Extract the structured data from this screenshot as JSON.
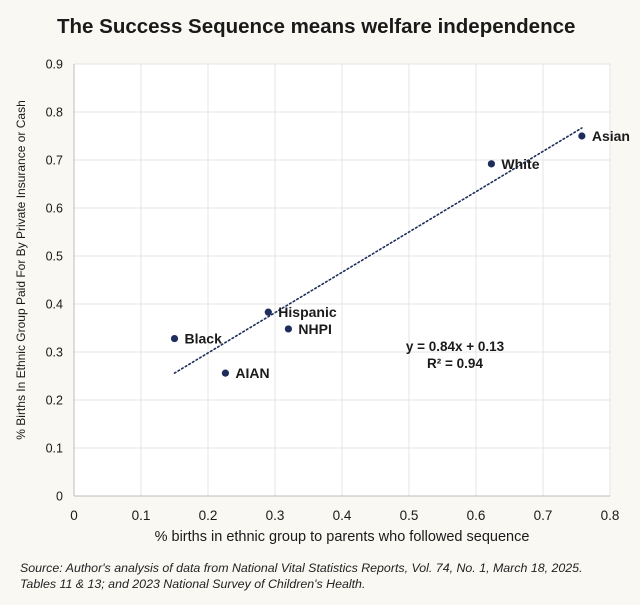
{
  "page": {
    "title": "The Success Sequence means welfare independence",
    "source_line1": "Source: Author's analysis of data from National Vital Statistics Reports, Vol. 74, No. 1, March 18, 2025.",
    "source_line2": "Tables 11 & 13; and 2023 National Survey of Children's Health."
  },
  "chart_data": {
    "type": "scatter",
    "title": "The Success Sequence means welfare independence",
    "xlabel": "% births in ethnic group to parents who followed sequence",
    "ylabel": "% Births In Ethnic Group Paid For By Private Insurance or Cash",
    "xlim": [
      0,
      0.8
    ],
    "ylim": [
      0,
      0.9
    ],
    "xticks": [
      0,
      0.1,
      0.2,
      0.3,
      0.4,
      0.5,
      0.6,
      0.7,
      0.8
    ],
    "yticks": [
      0,
      0.1,
      0.2,
      0.3,
      0.4,
      0.5,
      0.6,
      0.7,
      0.8,
      0.9
    ],
    "xtick_labels": [
      "0",
      "0.1",
      "0.2",
      "0.3",
      "0.4",
      "0.5",
      "0.6",
      "0.7",
      "0.8"
    ],
    "ytick_labels": [
      "0",
      "0.1",
      "0.2",
      "0.3",
      "0.4",
      "0.5",
      "0.6",
      "0.7",
      "0.8",
      "0.9"
    ],
    "grid": true,
    "point_color": "#1f2d5c",
    "points": [
      {
        "label": "Asian",
        "x": 0.758,
        "y": 0.75
      },
      {
        "label": "White",
        "x": 0.623,
        "y": 0.692
      },
      {
        "label": "Hispanic",
        "x": 0.29,
        "y": 0.383
      },
      {
        "label": "NHPI",
        "x": 0.32,
        "y": 0.348
      },
      {
        "label": "Black",
        "x": 0.15,
        "y": 0.328
      },
      {
        "label": "AIAN",
        "x": 0.226,
        "y": 0.256
      }
    ],
    "trendline": {
      "slope": 0.84,
      "intercept": 0.13,
      "x_range": [
        0.15,
        0.758
      ],
      "style": "dotted"
    },
    "annotation": {
      "equation": "y = 0.84x + 0.13",
      "r_squared": "R² = 0.94"
    }
  }
}
